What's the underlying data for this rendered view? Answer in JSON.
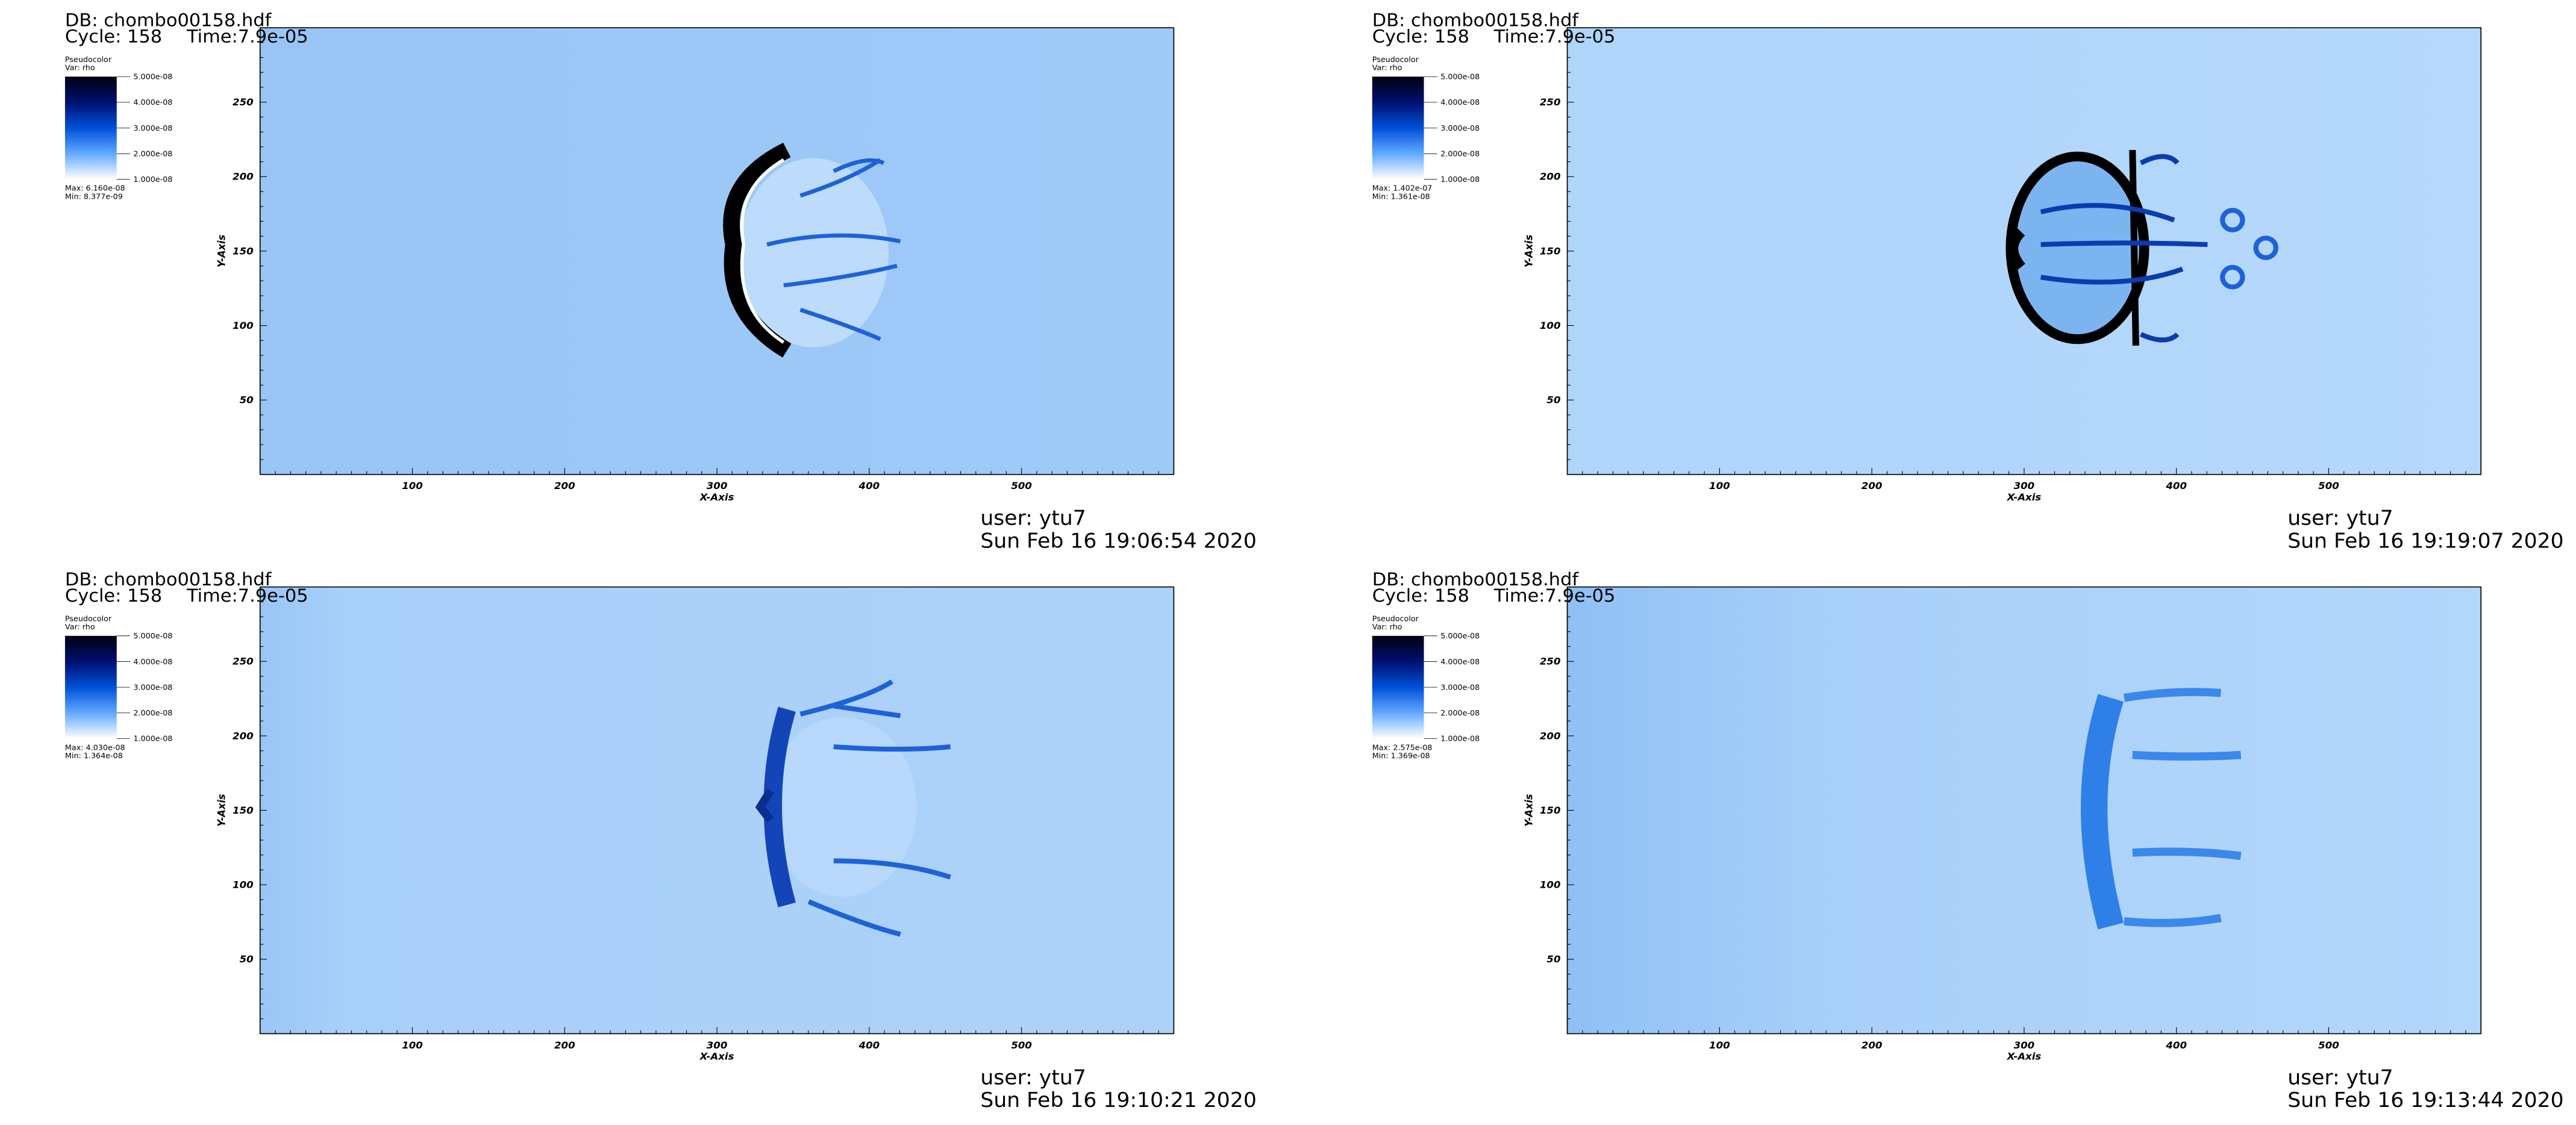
{
  "common": {
    "db": "DB: chombo00158.hdf",
    "cycle": "Cycle: 158",
    "time": "Time:7.9e-05",
    "legend_title": "Pseudocolor",
    "legend_var": "Var: rho",
    "legend_labels": [
      "5.000e-08",
      "4.000e-08",
      "3.000e-08",
      "2.000e-08",
      "1.000e-08"
    ],
    "x_axis_title": "X-Axis",
    "y_axis_title": "Y-Axis",
    "x_ticks": [
      "100",
      "200",
      "300",
      "400",
      "500"
    ],
    "y_ticks": [
      "250",
      "200",
      "150",
      "100",
      "50"
    ],
    "user": "user: ytu7"
  },
  "panels": [
    {
      "max": "Max: 6.160e-08",
      "min": "Min: 8.377e-09",
      "date": "Sun Feb 16 19:06:54 2020"
    },
    {
      "max": "Max: 1.402e-07",
      "min": "Min: 1.361e-08",
      "date": "Sun Feb 16 19:19:07 2020"
    },
    {
      "max": "Max: 4.030e-08",
      "min": "Min: 1.364e-08",
      "date": "Sun Feb 16 19:10:21 2020"
    },
    {
      "max": "Max: 2.575e-08",
      "min": "Min: 1.369e-08",
      "date": "Sun Feb 16 19:13:44 2020"
    }
  ]
}
